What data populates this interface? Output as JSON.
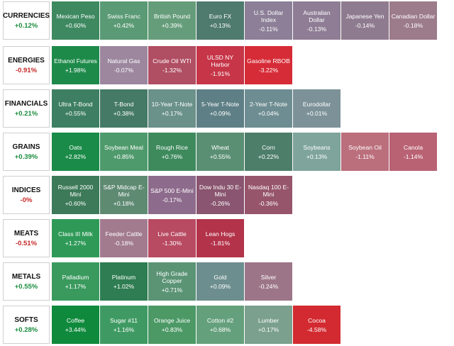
{
  "sectors": [
    {
      "name": "CURRENCIES",
      "change": "+0.12%",
      "change_color": "#1a8c3e",
      "tiles": [
        {
          "name": "Mexican Peso",
          "change": "+0.60%",
          "color": "#3e8960"
        },
        {
          "name": "Swiss Franc",
          "change": "+0.42%",
          "color": "#5a9a74"
        },
        {
          "name": "British Pound",
          "change": "+0.39%",
          "color": "#659d7a"
        },
        {
          "name": "Euro FX",
          "change": "+0.13%",
          "color": "#4f7a6e"
        },
        {
          "name": "U.S. Dollar Index",
          "change": "-0.11%",
          "color": "#8c7f97"
        },
        {
          "name": "Australian Dollar",
          "change": "-0.13%",
          "color": "#8e7d94"
        },
        {
          "name": "Japanese Yen",
          "change": "-0.14%",
          "color": "#8f7b8f"
        },
        {
          "name": "Canadian Dollar",
          "change": "-0.18%",
          "color": "#9c7b8a"
        }
      ]
    },
    {
      "name": "ENERGIES",
      "change": "-0.91%",
      "change_color": "#c62828",
      "tiles": [
        {
          "name": "Ethanol Futures",
          "change": "+1.98%",
          "color": "#1e8a4a"
        },
        {
          "name": "Natural Gas",
          "change": "-0.07%",
          "color": "#9c879f"
        },
        {
          "name": "Crude Oil WTI",
          "change": "-1.32%",
          "color": "#b04e63"
        },
        {
          "name": "ULSD NY Harbor",
          "change": "-1.91%",
          "color": "#c63548"
        },
        {
          "name": "Gasoline RBOB",
          "change": "-3.22%",
          "color": "#d62c37"
        }
      ]
    },
    {
      "name": "FINANCIALS",
      "change": "+0.21%",
      "change_color": "#1a8c3e",
      "tiles": [
        {
          "name": "Ultra T-Bond",
          "change": "+0.55%",
          "color": "#3e7f63"
        },
        {
          "name": "T-Bond",
          "change": "+0.38%",
          "color": "#457a66"
        },
        {
          "name": "10-Year T-Note",
          "change": "+0.17%",
          "color": "#6a918a"
        },
        {
          "name": "5-Year T-Note",
          "change": "+0.09%",
          "color": "#5e7f86"
        },
        {
          "name": "2-Year T-Note",
          "change": "+0.04%",
          "color": "#6e8d92"
        },
        {
          "name": "Eurodollar",
          "change": "+0.01%",
          "color": "#7c9298"
        }
      ]
    },
    {
      "name": "GRAINS",
      "change": "+0.39%",
      "change_color": "#1a8c3e",
      "tiles": [
        {
          "name": "Oats",
          "change": "+2.82%",
          "color": "#1a8b48"
        },
        {
          "name": "Soybean Meal",
          "change": "+0.85%",
          "color": "#4f9a6c"
        },
        {
          "name": "Rough Rice",
          "change": "+0.76%",
          "color": "#3e8a5d"
        },
        {
          "name": "Wheat",
          "change": "+0.55%",
          "color": "#5a8f73"
        },
        {
          "name": "Corn",
          "change": "+0.22%",
          "color": "#4d7e6a"
        },
        {
          "name": "Soybeans",
          "change": "+0.13%",
          "color": "#7fa49b"
        },
        {
          "name": "Soybean Oil",
          "change": "-1.11%",
          "color": "#bb6e7c"
        },
        {
          "name": "Canola",
          "change": "-1.14%",
          "color": "#b96274"
        }
      ]
    },
    {
      "name": "INDICES",
      "change": "-0%",
      "change_color": "#c62828",
      "tiles": [
        {
          "name": "Russell 2000 Mini",
          "change": "+0.60%",
          "color": "#3d7a59"
        },
        {
          "name": "S&P Midcap E-Mini",
          "change": "+0.18%",
          "color": "#5e8a72"
        },
        {
          "name": "S&P 500 E-Mini",
          "change": "-0.17%",
          "color": "#8d6b8c"
        },
        {
          "name": "Dow Indu 30 E-Mini",
          "change": "-0.26%",
          "color": "#8a5570"
        },
        {
          "name": "Nasdaq 100 E-Mini",
          "change": "-0.36%",
          "color": "#96556b"
        }
      ]
    },
    {
      "name": "MEATS",
      "change": "-0.51%",
      "change_color": "#c62828",
      "tiles": [
        {
          "name": "Class III Milk",
          "change": "+1.27%",
          "color": "#2f9a58"
        },
        {
          "name": "Feeder Cattle",
          "change": "-0.18%",
          "color": "#a27b8f"
        },
        {
          "name": "Live Cattle",
          "change": "-1.30%",
          "color": "#b84a62"
        },
        {
          "name": "Lean Hogs",
          "change": "-1.81%",
          "color": "#b3334a"
        }
      ]
    },
    {
      "name": "METALS",
      "change": "+0.55%",
      "change_color": "#1a8c3e",
      "tiles": [
        {
          "name": "Palladium",
          "change": "+1.17%",
          "color": "#3a9a5e"
        },
        {
          "name": "Platinum",
          "change": "+1.02%",
          "color": "#2f7d52"
        },
        {
          "name": "High Grade Copper",
          "change": "+0.71%",
          "color": "#5b9475"
        },
        {
          "name": "Gold",
          "change": "+0.09%",
          "color": "#6d8e8e"
        },
        {
          "name": "Silver",
          "change": "-0.24%",
          "color": "#9c7688"
        }
      ]
    },
    {
      "name": "SOFTS",
      "change": "+0.28%",
      "change_color": "#1a8c3e",
      "tiles": [
        {
          "name": "Coffee",
          "change": "+3.44%",
          "color": "#0f8a3c"
        },
        {
          "name": "Sugar #11",
          "change": "+1.16%",
          "color": "#3e9a62"
        },
        {
          "name": "Orange Juice",
          "change": "+0.83%",
          "color": "#4c9966"
        },
        {
          "name": "Cotton #2",
          "change": "+0.68%",
          "color": "#64a07c"
        },
        {
          "name": "Lumber",
          "change": "+0.17%",
          "color": "#7ba08e"
        },
        {
          "name": "Cocoa",
          "change": "-4.58%",
          "color": "#d22a30"
        }
      ]
    }
  ]
}
